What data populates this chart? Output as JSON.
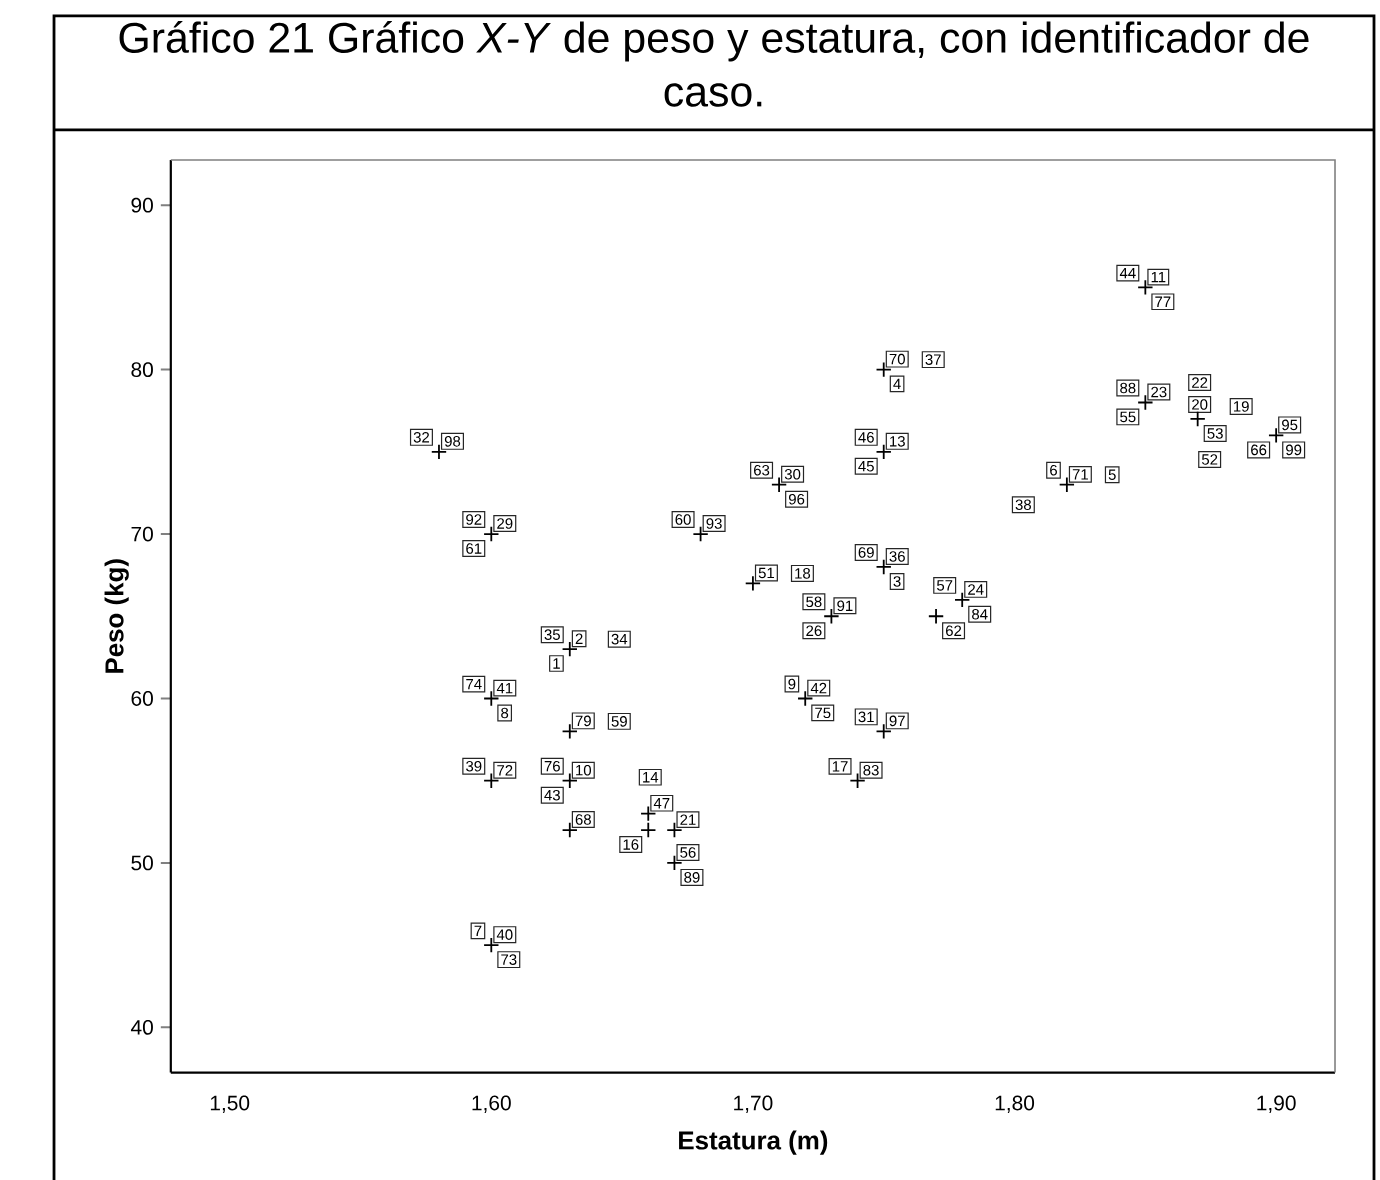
{
  "chart_data": {
    "type": "scatter",
    "title": "Gráfico 21 Gráfico *X-Y* de peso y estatura, con identificador de caso.",
    "xlabel": "Estatura (m)",
    "ylabel": "Peso (kg)",
    "x": [
      1.58,
      1.6,
      1.63,
      1.68,
      1.6,
      1.63,
      1.6,
      1.63,
      1.63,
      1.66,
      1.66,
      1.67,
      1.67,
      1.6,
      1.71,
      1.75,
      1.75,
      1.7,
      1.75,
      1.73,
      1.78,
      1.77,
      1.82,
      1.85,
      1.85,
      1.87,
      1.9,
      1.72,
      1.75,
      1.74
    ],
    "values": [
      75,
      70,
      63,
      70,
      60,
      58,
      55,
      55,
      52,
      53,
      52,
      52,
      50,
      45,
      73,
      75,
      80,
      67,
      68,
      65,
      66,
      65,
      73,
      85,
      78,
      77,
      76,
      60,
      58,
      55
    ],
    "color": "#000000",
    "marker": "cross",
    "xlim": [
      1.4775,
      1.9225
    ],
    "ylim": [
      37.25,
      92.75
    ],
    "xticks": [
      {
        "value": 1.5,
        "label": "1,50"
      },
      {
        "value": 1.6,
        "label": "1,60"
      },
      {
        "value": 1.7,
        "label": "1,70"
      },
      {
        "value": 1.8,
        "label": "1,80"
      },
      {
        "value": 1.9,
        "label": "1,90"
      }
    ],
    "yticks": [
      40,
      50,
      60,
      70,
      80,
      90
    ],
    "annotations": [
      {
        "text": "98",
        "x": 1.58,
        "y": 75
      },
      {
        "text": "32",
        "x": 1.58,
        "y": 75
      },
      {
        "text": "29",
        "x": 1.6,
        "y": 70
      },
      {
        "text": "92",
        "x": 1.6,
        "y": 70
      },
      {
        "text": "61",
        "x": 1.6,
        "y": 70
      },
      {
        "text": "2",
        "x": 1.63,
        "y": 63
      },
      {
        "text": "35",
        "x": 1.63,
        "y": 63
      },
      {
        "text": "1",
        "x": 1.63,
        "y": 63
      },
      {
        "text": "34",
        "x": 1.63,
        "y": 63
      },
      {
        "text": "93",
        "x": 1.68,
        "y": 70
      },
      {
        "text": "60",
        "x": 1.68,
        "y": 70
      },
      {
        "text": "41",
        "x": 1.6,
        "y": 60
      },
      {
        "text": "74",
        "x": 1.6,
        "y": 60
      },
      {
        "text": "8",
        "x": 1.6,
        "y": 60
      },
      {
        "text": "79",
        "x": 1.63,
        "y": 58
      },
      {
        "text": "59",
        "x": 1.63,
        "y": 58
      },
      {
        "text": "72",
        "x": 1.6,
        "y": 55
      },
      {
        "text": "39",
        "x": 1.6,
        "y": 55
      },
      {
        "text": "10",
        "x": 1.63,
        "y": 55
      },
      {
        "text": "76",
        "x": 1.63,
        "y": 55
      },
      {
        "text": "43",
        "x": 1.63,
        "y": 55
      },
      {
        "text": "68",
        "x": 1.63,
        "y": 52
      },
      {
        "text": "47",
        "x": 1.66,
        "y": 53
      },
      {
        "text": "14",
        "x": 1.66,
        "y": 53
      },
      {
        "text": "16",
        "x": 1.66,
        "y": 52
      },
      {
        "text": "21",
        "x": 1.67,
        "y": 52
      },
      {
        "text": "56",
        "x": 1.67,
        "y": 50
      },
      {
        "text": "89",
        "x": 1.67,
        "y": 50
      },
      {
        "text": "40",
        "x": 1.6,
        "y": 45
      },
      {
        "text": "7",
        "x": 1.6,
        "y": 45
      },
      {
        "text": "73",
        "x": 1.6,
        "y": 45
      },
      {
        "text": "63",
        "x": 1.71,
        "y": 73
      },
      {
        "text": "30",
        "x": 1.71,
        "y": 73
      },
      {
        "text": "96",
        "x": 1.71,
        "y": 73
      },
      {
        "text": "46",
        "x": 1.75,
        "y": 75
      },
      {
        "text": "13",
        "x": 1.75,
        "y": 75
      },
      {
        "text": "45",
        "x": 1.75,
        "y": 75
      },
      {
        "text": "70",
        "x": 1.75,
        "y": 80
      },
      {
        "text": "37",
        "x": 1.75,
        "y": 80
      },
      {
        "text": "4",
        "x": 1.75,
        "y": 80
      },
      {
        "text": "51",
        "x": 1.7,
        "y": 67
      },
      {
        "text": "18",
        "x": 1.7,
        "y": 67
      },
      {
        "text": "69",
        "x": 1.75,
        "y": 68
      },
      {
        "text": "36",
        "x": 1.75,
        "y": 68
      },
      {
        "text": "3",
        "x": 1.75,
        "y": 68
      },
      {
        "text": "58",
        "x": 1.73,
        "y": 65
      },
      {
        "text": "91",
        "x": 1.73,
        "y": 65
      },
      {
        "text": "26",
        "x": 1.73,
        "y": 65
      },
      {
        "text": "57",
        "x": 1.78,
        "y": 66
      },
      {
        "text": "24",
        "x": 1.78,
        "y": 66
      },
      {
        "text": "84",
        "x": 1.78,
        "y": 66
      },
      {
        "text": "62",
        "x": 1.77,
        "y": 65
      },
      {
        "text": "6",
        "x": 1.82,
        "y": 73
      },
      {
        "text": "71",
        "x": 1.82,
        "y": 73
      },
      {
        "text": "5",
        "x": 1.82,
        "y": 73
      },
      {
        "text": "38",
        "x": 1.82,
        "y": 73
      },
      {
        "text": "44",
        "x": 1.85,
        "y": 85
      },
      {
        "text": "11",
        "x": 1.85,
        "y": 85
      },
      {
        "text": "77",
        "x": 1.85,
        "y": 85
      },
      {
        "text": "88",
        "x": 1.85,
        "y": 78
      },
      {
        "text": "23",
        "x": 1.85,
        "y": 78
      },
      {
        "text": "55",
        "x": 1.85,
        "y": 78
      },
      {
        "text": "20",
        "x": 1.87,
        "y": 77
      },
      {
        "text": "22",
        "x": 1.87,
        "y": 77
      },
      {
        "text": "52",
        "x": 1.87,
        "y": 77
      },
      {
        "text": "53",
        "x": 1.87,
        "y": 77
      },
      {
        "text": "19",
        "x": 1.87,
        "y": 77
      },
      {
        "text": "95",
        "x": 1.9,
        "y": 76
      },
      {
        "text": "66",
        "x": 1.9,
        "y": 76
      },
      {
        "text": "99",
        "x": 1.9,
        "y": 76
      },
      {
        "text": "9",
        "x": 1.72,
        "y": 60
      },
      {
        "text": "42",
        "x": 1.72,
        "y": 60
      },
      {
        "text": "75",
        "x": 1.72,
        "y": 60
      },
      {
        "text": "31",
        "x": 1.75,
        "y": 58
      },
      {
        "text": "97",
        "x": 1.75,
        "y": 58
      },
      {
        "text": "17",
        "x": 1.74,
        "y": 55
      },
      {
        "text": "83",
        "x": 1.74,
        "y": 55
      }
    ]
  }
}
